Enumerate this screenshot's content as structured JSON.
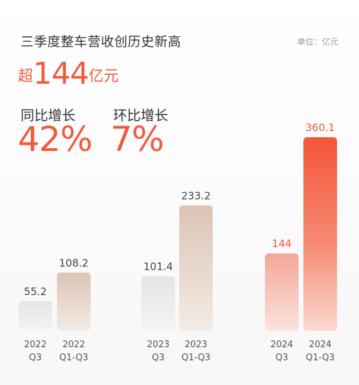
{
  "header": {
    "title": "三季度整车营收创历史新高",
    "unit": "单位：亿元",
    "headline_prefix": "超",
    "headline_number": "144",
    "headline_suffix": "亿元"
  },
  "stats": [
    {
      "label": "同比增长",
      "value": "42%"
    },
    {
      "label": "环比增长",
      "value": "7%"
    }
  ],
  "colors": {
    "accent": "#f05a3c",
    "gray_bar": "#e6e6e6",
    "beige_bar": "#e2cdbf",
    "pink_bar": "#f6b3a6",
    "red_bar": "#f55b3f"
  },
  "chart_data": {
    "type": "bar",
    "title": "",
    "xlabel": "",
    "ylabel": "",
    "ylim": [
      0,
      360.1
    ],
    "grid": false,
    "bars": [
      {
        "year": "2022",
        "period": "Q3",
        "value": 55.2,
        "label": "55.2",
        "style": "gray"
      },
      {
        "year": "2022",
        "period": "Q1-Q3",
        "value": 108.2,
        "label": "108.2",
        "style": "beige"
      },
      {
        "year": "2023",
        "period": "Q3",
        "value": 101.4,
        "label": "101.4",
        "style": "gray"
      },
      {
        "year": "2023",
        "period": "Q1-Q3",
        "value": 233.2,
        "label": "233.2",
        "style": "beige"
      },
      {
        "year": "2024",
        "period": "Q3",
        "value": 144,
        "label": "144",
        "style": "pink"
      },
      {
        "year": "2024",
        "period": "Q1-Q3",
        "value": 360.1,
        "label": "360.1",
        "style": "red"
      }
    ]
  }
}
